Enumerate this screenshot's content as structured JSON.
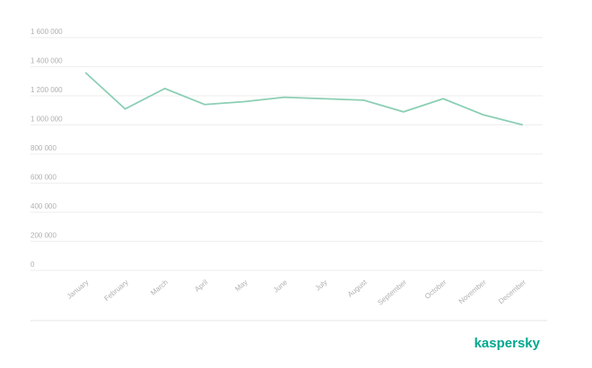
{
  "chart_data": {
    "type": "line",
    "categories": [
      "January",
      "February",
      "March",
      "April",
      "May",
      "June",
      "July",
      "August",
      "September",
      "October",
      "November",
      "December"
    ],
    "values": [
      1360000,
      1110000,
      1250000,
      1140000,
      1160000,
      1190000,
      1180000,
      1170000,
      1090000,
      1180000,
      1070000,
      1000000
    ],
    "color": "#8ccfb4",
    "ylim": [
      0,
      1600000
    ],
    "yticks": [
      0,
      {
        "value": 200000,
        "label": "200 000"
      },
      {
        "value": 400000,
        "label": "400 000"
      },
      {
        "value": 600000,
        "label": "600 000"
      },
      {
        "value": 800000,
        "label": "800 000"
      },
      {
        "value": 1000000,
        "label": "1 000 000"
      },
      {
        "value": 1200000,
        "label": "1 200 000"
      },
      {
        "value": 1400000,
        "label": "1 400 000"
      },
      {
        "value": 1600000,
        "label": "1 600 000"
      }
    ],
    "grid": true
  },
  "footer": {
    "brand": "kaspersky"
  }
}
